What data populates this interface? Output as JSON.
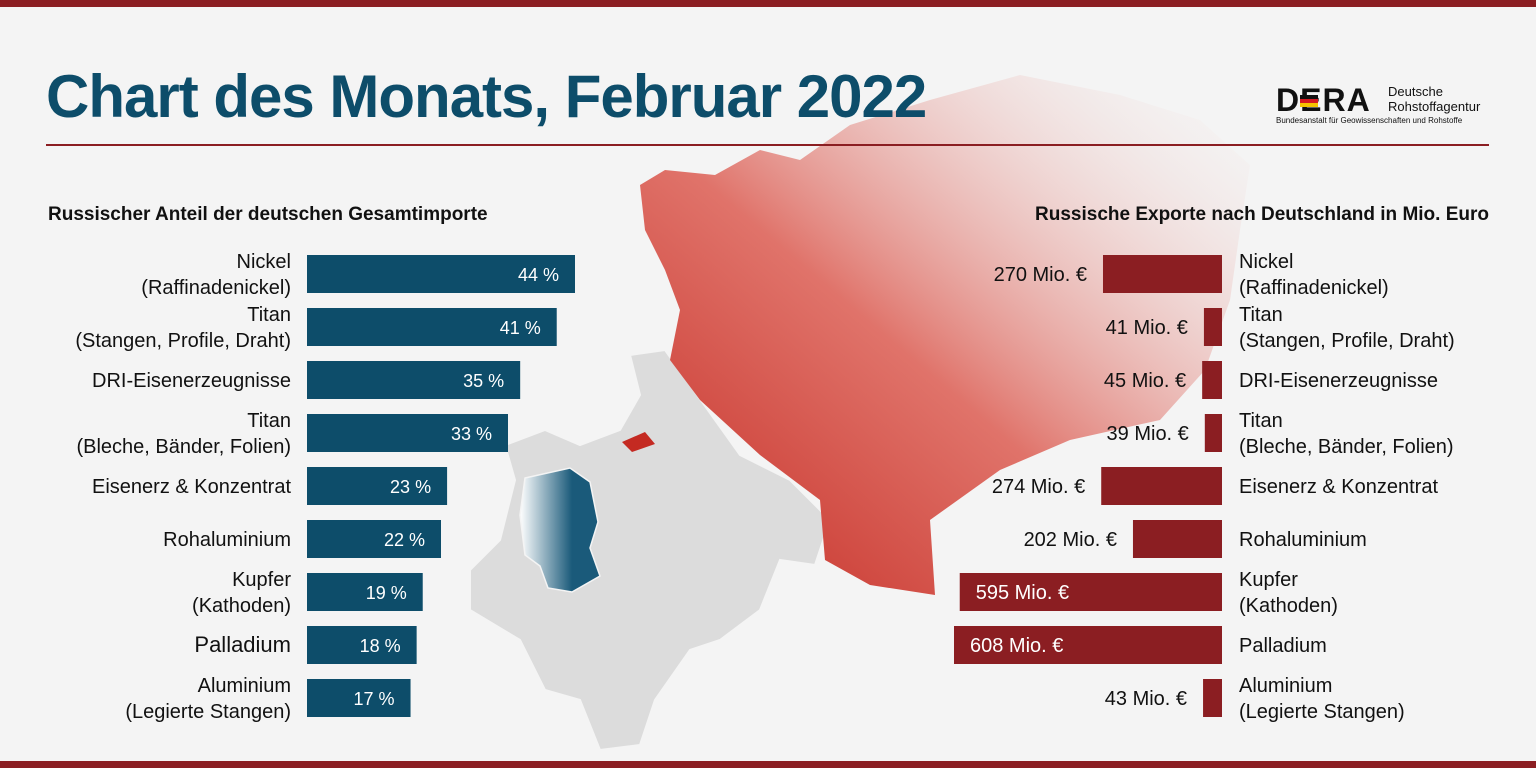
{
  "header": {
    "title": "Chart des Monats, Februar 2022",
    "logo": {
      "wordmark": "DERA",
      "name_line1": "Deutsche",
      "name_line2": "Rohstoffagentur",
      "subtitle": "Bundesanstalt für Geowissenschaften und Rohstoffe"
    }
  },
  "colors": {
    "title": "#0d4d6a",
    "left_bar": "#0d4d6a",
    "right_bar": "#8b1e22",
    "accent_band": "#8b1e22",
    "russia_map": "#c8332e",
    "germany_map": "#1a5a7a",
    "europe_map": "#d8d8d8"
  },
  "chart_data": [
    {
      "type": "bar",
      "orientation": "horizontal",
      "title": "Russischer Anteil der deutschen Gesamtimporte",
      "categories": [
        [
          "Nickel",
          "(Raffinadenickel)"
        ],
        [
          "Titan",
          "(Stangen, Profile, Draht)"
        ],
        [
          "DRI-Eisenerzeugnisse"
        ],
        [
          "Titan",
          "(Bleche, Bänder, Folien)"
        ],
        [
          "Eisenerz & Konzentrat"
        ],
        [
          "Rohaluminium"
        ],
        [
          "Kupfer",
          "(Kathoden)"
        ],
        [
          "Palladium"
        ],
        [
          "Aluminium",
          "(Legierte Stangen)"
        ]
      ],
      "values": [
        44,
        41,
        35,
        33,
        23,
        22,
        19,
        18,
        17
      ],
      "labels": [
        "44 %",
        "41 %",
        "35 %",
        "33 %",
        "23 %",
        "22 %",
        "19 %",
        "18 %",
        "17 %"
      ],
      "unit": "%"
    },
    {
      "type": "bar",
      "orientation": "horizontal",
      "title": "Russische Exporte nach Deutschland in Mio. Euro",
      "categories": [
        [
          "Nickel",
          "(Raffinadenickel)"
        ],
        [
          "Titan",
          "(Stangen, Profile, Draht)"
        ],
        [
          "DRI-Eisenerzeugnisse"
        ],
        [
          "Titan",
          "(Bleche, Bänder, Folien)"
        ],
        [
          "Eisenerz & Konzentrat"
        ],
        [
          "Rohaluminium"
        ],
        [
          "Kupfer",
          "(Kathoden)"
        ],
        [
          "Palladium"
        ],
        [
          "Aluminium",
          "(Legierte Stangen)"
        ]
      ],
      "values": [
        270,
        41,
        45,
        39,
        274,
        202,
        595,
        608,
        43
      ],
      "labels": [
        "270 Mio. €",
        "41 Mio. €",
        "45 Mio. €",
        "39 Mio. €",
        "274 Mio. €",
        "202 Mio. €",
        "595 Mio. €",
        "608 Mio. €",
        "43 Mio. €"
      ],
      "unit": "Mio. €"
    }
  ]
}
